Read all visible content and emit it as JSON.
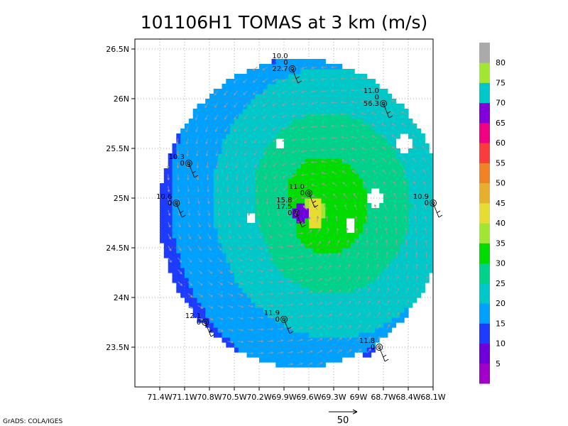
{
  "chart_data": {
    "type": "heatmap",
    "title": "101106H1 TOMAS at 3 km (m/s)",
    "x_ticks": [
      "71.4W",
      "71.1W",
      "70.8W",
      "70.5W",
      "70.2W",
      "69.9W",
      "69.6W",
      "69.3W",
      "69W",
      "68.7W",
      "68.4W",
      "68.1W"
    ],
    "y_ticks": [
      "26.5N",
      "26N",
      "25.5N",
      "25N",
      "24.5N",
      "24N",
      "23.5N"
    ],
    "xlim": [
      -71.7,
      -68.1
    ],
    "ylim": [
      23.1,
      26.6
    ],
    "colorbar": {
      "labels": [
        "5",
        "10",
        "15",
        "20",
        "25",
        "30",
        "35",
        "40",
        "45",
        "50",
        "55",
        "60",
        "65",
        "70",
        "75",
        "80"
      ],
      "colors": [
        "#a000c8",
        "#6e00dc",
        "#1e3cff",
        "#00a0ff",
        "#00c8c8",
        "#00d28c",
        "#00dc00",
        "#a0e632",
        "#e6dc32",
        "#e6af2d",
        "#f08228",
        "#fa3c3c",
        "#f00082",
        "#8200dc",
        "#00c8c8",
        "#a0e632",
        "#aaaaaa"
      ]
    },
    "vector_scale_label": "50",
    "credit": "GrADS: COLA/IGES",
    "center": {
      "lon": -69.7,
      "lat": 24.85
    },
    "stations": [
      {
        "lon": -69.8,
        "lat": 26.3,
        "labels": [
          "10.0",
          "0",
          "22.7"
        ]
      },
      {
        "lon": -68.7,
        "lat": 25.95,
        "labels": [
          "11.0",
          "0",
          "56.3"
        ]
      },
      {
        "lon": -71.05,
        "lat": 25.35,
        "labels": [
          "10.3",
          "0"
        ]
      },
      {
        "lon": -71.2,
        "lat": 24.95,
        "labels": [
          "10.6",
          "0"
        ]
      },
      {
        "lon": -69.6,
        "lat": 25.05,
        "labels": [
          "11.0",
          "0"
        ]
      },
      {
        "lon": -69.75,
        "lat": 24.85,
        "labels": [
          "15.8",
          "17.5",
          "0"
        ]
      },
      {
        "lon": -68.1,
        "lat": 24.95,
        "labels": [
          "10.9",
          "0"
        ]
      },
      {
        "lon": -70.85,
        "lat": 23.75,
        "labels": [
          "12.1",
          "0"
        ]
      },
      {
        "lon": -69.9,
        "lat": 23.78,
        "labels": [
          "11.9",
          "0"
        ]
      },
      {
        "lon": -68.75,
        "lat": 23.5,
        "labels": [
          "11.8",
          "0"
        ]
      }
    ]
  }
}
